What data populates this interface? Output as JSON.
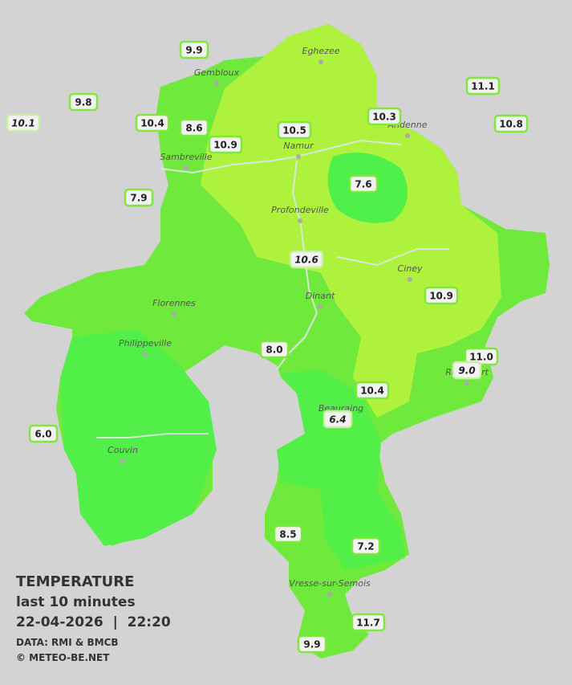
{
  "towns": [
    "Eghezee",
    "Gembloux",
    "Andenne",
    "Namur",
    "Sambreville",
    "Profondeville",
    "Ciney",
    "Dinant",
    "Florennes",
    "Philippeville",
    "Rochefort",
    "Beauraing",
    "Couvin",
    "Vresse-sur-Semois"
  ],
  "stations": [
    {
      "value": "9.9"
    },
    {
      "value": "9.8"
    },
    {
      "value": "10.1",
      "italic": true
    },
    {
      "value": "10.4"
    },
    {
      "value": "8.6"
    },
    {
      "value": "10.9"
    },
    {
      "value": "10.5"
    },
    {
      "value": "10.3"
    },
    {
      "value": "11.1"
    },
    {
      "value": "10.8"
    },
    {
      "value": "7.9"
    },
    {
      "value": "7.6"
    },
    {
      "value": "10.6",
      "italic": true
    },
    {
      "value": "10.9"
    },
    {
      "value": "8.0"
    },
    {
      "value": "11.0"
    },
    {
      "value": "9.0",
      "italic": true
    },
    {
      "value": "10.4"
    },
    {
      "value": "6.4",
      "italic": true
    },
    {
      "value": "6.0"
    },
    {
      "value": "8.5"
    },
    {
      "value": "7.2"
    },
    {
      "value": "11.7"
    },
    {
      "value": "9.9"
    }
  ],
  "legend": {
    "title": "TEMPERATURE",
    "subtitle": "last 10 minutes",
    "datetime": "22-04-2026  |  22:20",
    "source": "DATA: RMI & BMCB",
    "credit": "© METEO-BE.NET"
  }
}
